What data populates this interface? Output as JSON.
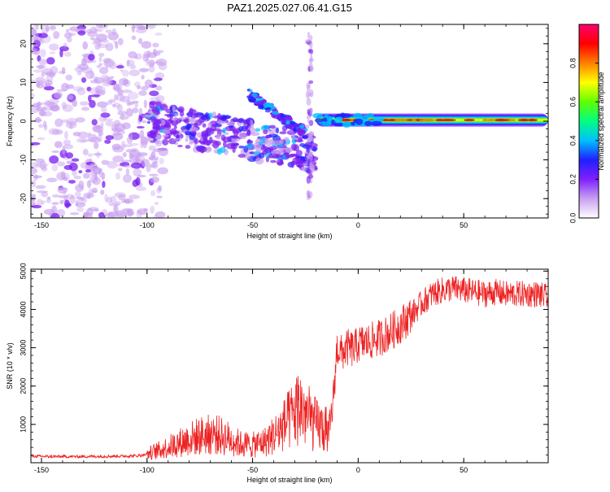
{
  "title": "PAZ1.2025.027.06.41.G15",
  "chart_data": [
    {
      "type": "heatmap",
      "xlabel": "Height of straight line (km)",
      "ylabel": "Frequency (Hz)",
      "xlim": [
        -155,
        90
      ],
      "ylim": [
        -25,
        25
      ],
      "xticks": [
        -150,
        -100,
        -50,
        0,
        50
      ],
      "yticks": [
        -20,
        -10,
        0,
        10,
        20
      ],
      "colorbar": {
        "label": "Normalized spectral amplitude",
        "range": [
          0.0,
          1.0
        ],
        "ticks": [
          0.0,
          0.2,
          0.4,
          0.6,
          0.8
        ],
        "tick_labels": [
          "0.0",
          "0.2",
          "0.4",
          "0.6",
          "0.8"
        ],
        "colormap": [
          "#ffffff",
          "#c8a0f0",
          "#8020ff",
          "#2020ff",
          "#00c0ff",
          "#00ff80",
          "#60ff00",
          "#ffff00",
          "#ff8000",
          "#ff0000",
          "#ff0070"
        ]
      },
      "features": [
        {
          "name": "",
          "x_range": [
            -155,
            -100
          ],
          "freq_range": [
            -25,
            25
          ],
          "amplitude": 0.05
        },
        {
          "name": "",
          "x_range": [
            -100,
            -20
          ],
          "freq_center": [
            0,
            -8
          ],
          "amplitude": 0.2
        },
        {
          "name": "",
          "x_range": [
            -52,
            -25
          ],
          "freq_center": [
            7,
            -3
          ],
          "amplitude": 0.25
        },
        {
          "name": "",
          "x": -23,
          "freq_range": [
            -20,
            24
          ],
          "amplitude": 0.05
        },
        {
          "name": "",
          "x_range": [
            -20,
            90
          ],
          "freq": 0.3,
          "amplitude": 0.9
        }
      ]
    },
    {
      "type": "line",
      "xlabel": "Height of straight line (km)",
      "ylabel": "SNR (10 * v/v)",
      "xlim": [
        -155,
        90
      ],
      "ylim": [
        0,
        5050
      ],
      "xticks": [
        -150,
        -100,
        -50,
        0,
        50
      ],
      "yticks": [
        1000,
        2000,
        3000,
        4000,
        5000
      ],
      "color": "#ee2222",
      "x": [
        -155,
        -145,
        -135,
        -125,
        -115,
        -105,
        -98,
        -92,
        -86,
        -80,
        -74,
        -68,
        -62,
        -56,
        -50,
        -44,
        -38,
        -32,
        -28,
        -24,
        -20,
        -17,
        -14,
        -12,
        -10,
        -8,
        -5,
        -2,
        0,
        5,
        10,
        15,
        20,
        25,
        30,
        35,
        40,
        45,
        50,
        55,
        60,
        65,
        70,
        75,
        80,
        85,
        90
      ],
      "y": [
        170,
        160,
        160,
        165,
        170,
        180,
        230,
        320,
        430,
        540,
        620,
        650,
        560,
        430,
        400,
        480,
        700,
        1000,
        1300,
        1050,
        850,
        800,
        700,
        1500,
        3000,
        2850,
        3000,
        2950,
        3100,
        3150,
        3250,
        3400,
        3600,
        3850,
        4150,
        4400,
        4500,
        4550,
        4500,
        4450,
        4400,
        4450,
        4400,
        4400,
        4400,
        4400,
        4300
      ]
    }
  ]
}
